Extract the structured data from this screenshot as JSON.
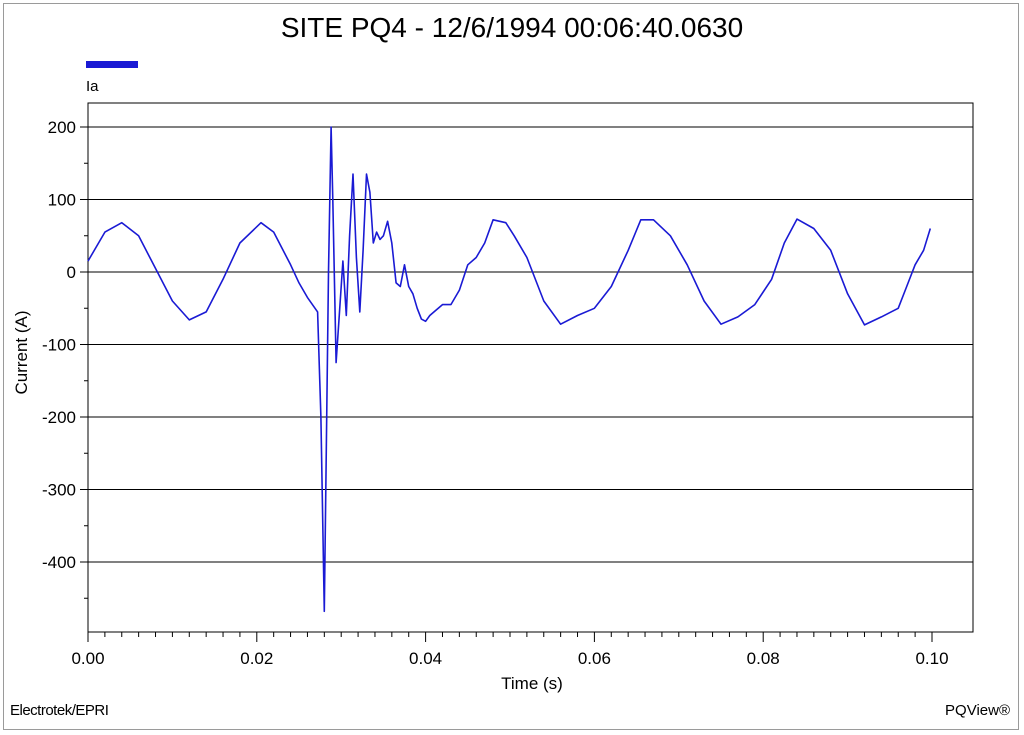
{
  "title": "SITE PQ4 - 12/6/1994 00:06:40.0630",
  "footer": {
    "left": "Electrotek/EPRI",
    "right": "PQView®"
  },
  "colors": {
    "series": "#1a1ad4",
    "grid": "#000000"
  },
  "chart_data": {
    "type": "line",
    "title": "SITE PQ4 - 12/6/1994 00:06:40.0630",
    "xlabel": "Time (s)",
    "ylabel": "Current (A)",
    "xlim": [
      0.0,
      0.1
    ],
    "ylim": [
      -500,
      230
    ],
    "x_ticks": [
      0.0,
      0.02,
      0.04,
      0.06,
      0.08,
      0.1
    ],
    "x_tick_labels": [
      "0.00",
      "0.02",
      "0.04",
      "0.06",
      "0.08",
      "0.10"
    ],
    "y_ticks": [
      200,
      100,
      0,
      -100,
      -200,
      -300,
      -400
    ],
    "y_tick_labels": [
      "200",
      "100",
      "0",
      "-100",
      "-200",
      "-300",
      "-400"
    ],
    "grid": "horizontal",
    "legend": "top-left",
    "series": [
      {
        "name": "Ia",
        "x": [
          0.0,
          0.002,
          0.004,
          0.006,
          0.008,
          0.01,
          0.012,
          0.014,
          0.016,
          0.018,
          0.0205,
          0.022,
          0.024,
          0.025,
          0.026,
          0.0272,
          0.0276,
          0.028,
          0.0285,
          0.0288,
          0.029,
          0.0294,
          0.0298,
          0.0302,
          0.0306,
          0.031,
          0.0314,
          0.0318,
          0.0322,
          0.0326,
          0.033,
          0.0334,
          0.0338,
          0.0342,
          0.0346,
          0.035,
          0.0355,
          0.036,
          0.0365,
          0.037,
          0.0375,
          0.038,
          0.0385,
          0.039,
          0.0395,
          0.04,
          0.0405,
          0.041,
          0.042,
          0.043,
          0.044,
          0.045,
          0.046,
          0.047,
          0.048,
          0.0495,
          0.0505,
          0.052,
          0.054,
          0.056,
          0.058,
          0.06,
          0.062,
          0.064,
          0.0655,
          0.067,
          0.069,
          0.071,
          0.073,
          0.075,
          0.077,
          0.079,
          0.081,
          0.0825,
          0.084,
          0.086,
          0.088,
          0.09,
          0.092,
          0.094,
          0.096,
          0.097,
          0.098,
          0.099,
          0.0998
        ],
        "values": [
          15,
          55,
          68,
          50,
          5,
          -40,
          -66,
          -55,
          -10,
          40,
          68,
          55,
          10,
          -15,
          -35,
          -55,
          -200,
          -468,
          0,
          200,
          100,
          -125,
          -55,
          15,
          -60,
          50,
          135,
          20,
          -55,
          30,
          135,
          110,
          40,
          55,
          45,
          50,
          70,
          40,
          -15,
          -20,
          10,
          -20,
          -30,
          -50,
          -65,
          -68,
          -60,
          -55,
          -45,
          -45,
          -25,
          10,
          20,
          40,
          72,
          68,
          50,
          20,
          -40,
          -72,
          -60,
          -50,
          -20,
          30,
          72,
          72,
          50,
          10,
          -40,
          -72,
          -62,
          -45,
          -10,
          40,
          73,
          60,
          30,
          -30,
          -73,
          -62,
          -50,
          -20,
          10,
          30,
          60
        ]
      }
    ]
  }
}
